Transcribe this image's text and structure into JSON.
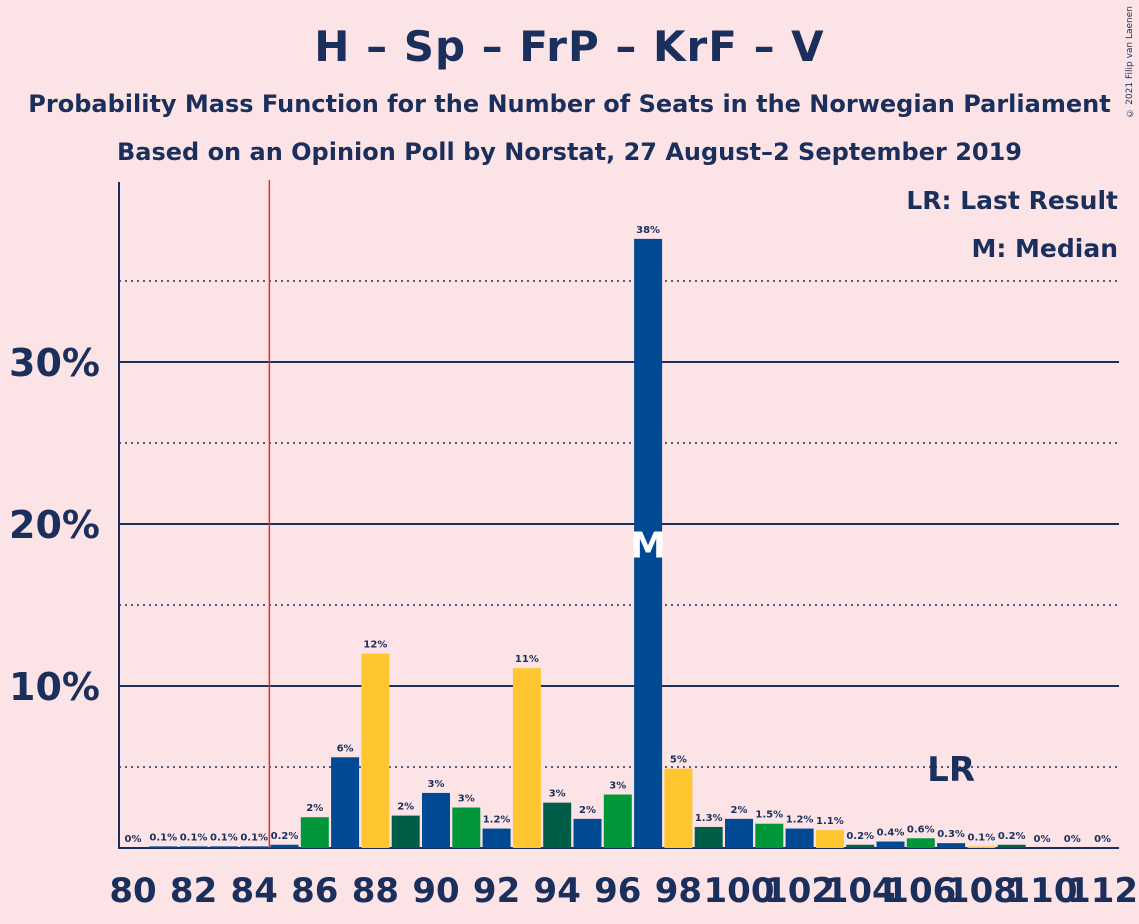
{
  "title": "H – Sp – FrP – KrF – V",
  "subtitle1": "Probability Mass Function for the Number of Seats in the Norwegian Parliament",
  "subtitle2": "Based on an Opinion Poll by Norstat, 27 August–2 September 2019",
  "copyright": "© 2021 Filip van Laenen",
  "chart_data": {
    "type": "bar",
    "x": [
      80,
      81,
      82,
      83,
      84,
      85,
      86,
      87,
      88,
      89,
      90,
      91,
      92,
      93,
      94,
      95,
      96,
      97,
      98,
      99,
      100,
      101,
      102,
      103,
      104,
      105,
      106,
      107,
      108,
      109,
      110,
      111,
      112
    ],
    "values": [
      0,
      0.1,
      0.1,
      0.1,
      0.1,
      0.2,
      1.9,
      5.6,
      12.0,
      2.0,
      3.4,
      2.5,
      1.2,
      11.1,
      2.8,
      1.8,
      3.3,
      37.6,
      4.9,
      1.3,
      1.8,
      1.5,
      1.2,
      1.1,
      0.2,
      0.4,
      0.6,
      0.3,
      0.1,
      0.2,
      0,
      0,
      0
    ],
    "labels": [
      "0%",
      "0.1%",
      "0.1%",
      "0.1%",
      "0.1%",
      "0.2%",
      "2%",
      "6%",
      "12%",
      "2%",
      "3%",
      "3%",
      "1.2%",
      "11%",
      "3%",
      "2%",
      "3%",
      "38%",
      "5%",
      "1.3%",
      "2%",
      "1.5%",
      "1.2%",
      "1.1%",
      "0.2%",
      "0.4%",
      "0.6%",
      "0.3%",
      "0.1%",
      "0.2%",
      "0%",
      "0%",
      "0%"
    ],
    "colors": [
      "#004A93",
      "#004A93",
      "#004A93",
      "#004A93",
      "#004A93",
      "#004A93",
      "#00973A",
      "#004A93",
      "#FFC632",
      "#005E48",
      "#004A93",
      "#00973A",
      "#004A93",
      "#FFC632",
      "#005E48",
      "#004A93",
      "#00973A",
      "#004A93",
      "#FFC632",
      "#005E48",
      "#004A93",
      "#00973A",
      "#004A93",
      "#FFC632",
      "#005E48",
      "#004A93",
      "#00973A",
      "#004A93",
      "#FFC632",
      "#005E48",
      "#004A93",
      "#00973A",
      "#004A93"
    ],
    "x_tick_labels": [
      "80",
      "82",
      "84",
      "86",
      "88",
      "90",
      "92",
      "94",
      "96",
      "98",
      "100",
      "102",
      "104",
      "106",
      "108",
      "110",
      "112"
    ],
    "y_tick_labels": [
      "10%",
      "20%",
      "30%"
    ],
    "ylim": [
      0,
      41
    ],
    "last_result": 107,
    "last_result_label": "LR",
    "median": 97,
    "median_label": "M",
    "majority_line_after": 84,
    "legend": [
      "LR: Last Result",
      "M: Median"
    ],
    "grid": true
  }
}
